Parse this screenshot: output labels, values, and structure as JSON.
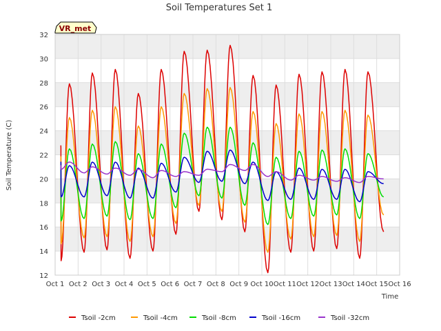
{
  "chart_data": {
    "type": "line",
    "title": "Soil Temperatures Set 1",
    "xlabel": "Time",
    "ylabel": "Soil Temperature (C)",
    "ylim": [
      12,
      32
    ],
    "xlim": [
      0,
      15
    ],
    "yticks": [
      12,
      14,
      16,
      18,
      20,
      22,
      24,
      26,
      28,
      30,
      32
    ],
    "xticks": [
      {
        "pos": 0,
        "label": "Oct 1"
      },
      {
        "pos": 1,
        "label": "Oct 2"
      },
      {
        "pos": 2,
        "label": "Oct 3"
      },
      {
        "pos": 3,
        "label": "Oct 4"
      },
      {
        "pos": 4,
        "label": "Oct 5"
      },
      {
        "pos": 5,
        "label": "Oct 6"
      },
      {
        "pos": 6,
        "label": "Oct 7"
      },
      {
        "pos": 7,
        "label": "Oct 8"
      },
      {
        "pos": 8,
        "label": "Oct 9"
      },
      {
        "pos": 9,
        "label": "Oct 10"
      },
      {
        "pos": 10,
        "label": "Oct 11"
      },
      {
        "pos": 11,
        "label": "Oct 12"
      },
      {
        "pos": 12,
        "label": "Oct 13"
      },
      {
        "pos": 13,
        "label": "Oct 14"
      },
      {
        "pos": 14,
        "label": "Oct 15"
      },
      {
        "pos": 15,
        "label": "Oct 16"
      }
    ],
    "grid": true,
    "legend": "bottom",
    "annotation": "VR_met",
    "x_start": 0.25,
    "x_end": 14.3,
    "series": [
      {
        "name": "Tsoil -2cm",
        "color": "#dd0000",
        "day_max": [
          27.9,
          28.8,
          29.1,
          27.1,
          29.1,
          30.6,
          30.7,
          31.1,
          28.6,
          27.8,
          28.7,
          28.9,
          29.1,
          28.9
        ],
        "day_min": [
          13.2,
          13.9,
          14.1,
          13.4,
          14.0,
          15.4,
          17.3,
          16.6,
          15.6,
          12.2,
          13.9,
          14.0,
          14.2,
          13.4
        ],
        "end_value": 15.6
      },
      {
        "name": "Tsoil -4cm",
        "color": "#ff9900",
        "day_max": [
          25.1,
          25.7,
          26.0,
          24.4,
          26.0,
          27.1,
          27.5,
          27.6,
          25.6,
          24.6,
          25.4,
          25.6,
          25.7,
          25.3
        ],
        "day_min": [
          14.6,
          15.1,
          15.2,
          14.8,
          15.2,
          16.3,
          17.8,
          17.3,
          16.4,
          13.9,
          15.0,
          15.2,
          15.3,
          14.8
        ],
        "end_value": 17.0
      },
      {
        "name": "Tsoil -8cm",
        "color": "#00dd00",
        "day_max": [
          22.5,
          22.9,
          23.1,
          22.1,
          22.9,
          23.8,
          24.3,
          24.3,
          23.0,
          21.8,
          22.3,
          22.4,
          22.5,
          22.1
        ],
        "day_min": [
          16.5,
          16.7,
          16.9,
          16.6,
          16.7,
          17.6,
          18.6,
          18.4,
          17.8,
          16.2,
          16.7,
          16.9,
          17.0,
          16.7
        ],
        "end_value": 18.5
      },
      {
        "name": "Tsoil -16cm",
        "color": "#0000cc",
        "day_max": [
          21.1,
          21.4,
          21.4,
          20.9,
          21.3,
          21.8,
          22.3,
          22.4,
          21.4,
          20.6,
          20.9,
          20.8,
          20.8,
          20.6
        ],
        "day_min": [
          18.5,
          18.5,
          18.6,
          18.4,
          18.4,
          18.9,
          19.7,
          19.8,
          19.6,
          18.2,
          18.3,
          18.3,
          18.3,
          18.1
        ],
        "end_value": 19.6
      },
      {
        "name": "Tsoil -32cm",
        "color": "#9933cc",
        "day_max": [
          21.4,
          21.0,
          20.9,
          20.8,
          20.7,
          20.6,
          20.8,
          21.2,
          21.2,
          20.6,
          20.3,
          20.2,
          20.1,
          20.2
        ],
        "day_min": [
          20.8,
          20.5,
          20.4,
          20.3,
          20.1,
          20.2,
          20.3,
          20.6,
          20.7,
          20.2,
          19.9,
          19.9,
          19.8,
          19.7
        ],
        "end_value": 20.0
      }
    ]
  }
}
